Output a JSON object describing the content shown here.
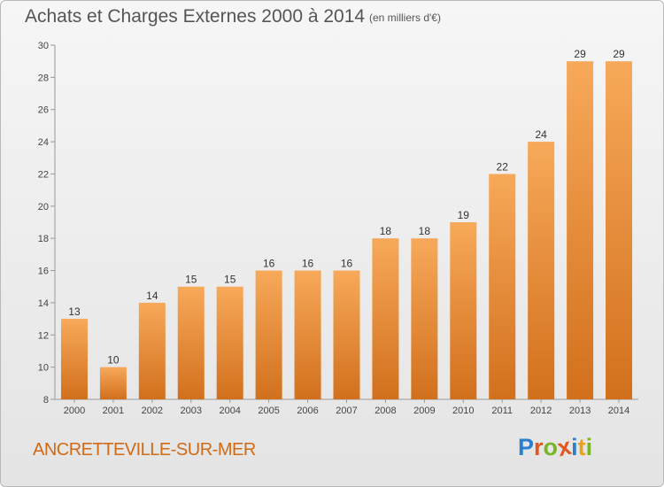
{
  "header": {
    "title": "Achats et Charges Externes 2000 à 2014",
    "unit": "(en milliers d'€)"
  },
  "footer": {
    "commune": "ANCRETTEVILLE-SUR-MER",
    "logo": "Proxiti"
  },
  "colors": {
    "bar_light": "#f7a95a",
    "bar_dark": "#d2701c",
    "commune": "#d16a14"
  },
  "chart_data": {
    "type": "bar",
    "title": "Achats et Charges Externes 2000 à 2014",
    "subtitle": "(en milliers d'€)",
    "categories": [
      "2000",
      "2001",
      "2002",
      "2003",
      "2004",
      "2005",
      "2006",
      "2007",
      "2008",
      "2009",
      "2010",
      "2011",
      "2012",
      "2013",
      "2014"
    ],
    "values": [
      13,
      10,
      14,
      15,
      15,
      16,
      16,
      16,
      18,
      18,
      19,
      22,
      24,
      29,
      29
    ],
    "ylim": [
      8,
      30
    ],
    "yticks": [
      8,
      10,
      12,
      14,
      16,
      18,
      20,
      22,
      24,
      26,
      28,
      30
    ],
    "grid": false,
    "legend": "none"
  }
}
